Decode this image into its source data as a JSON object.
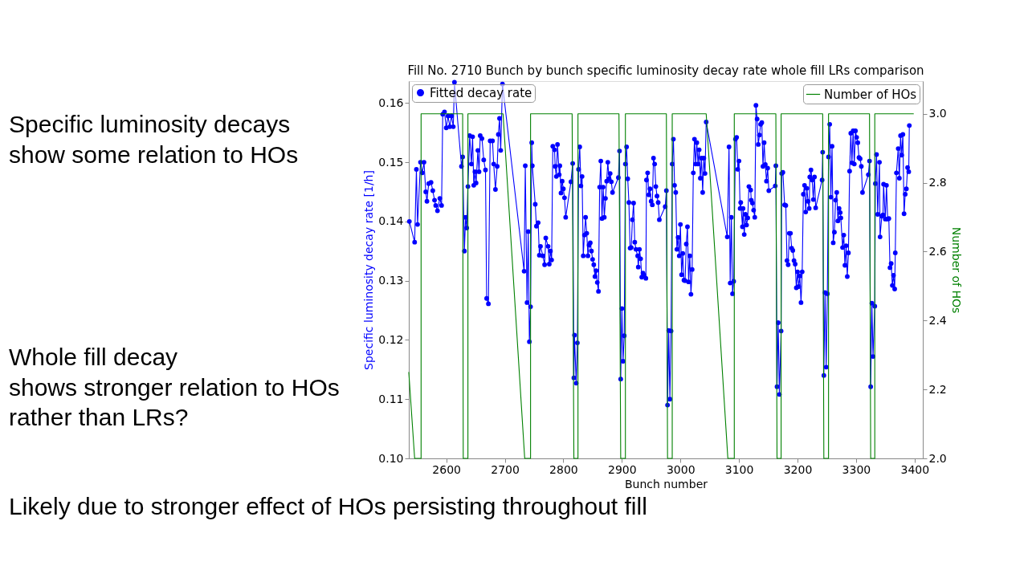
{
  "chart_data": {
    "type": "line",
    "legend": "top",
    "title": "Fill No. 2710 Bunch by bunch specific luminosity decay rate whole fill LRs comparison",
    "xlabel": "Bunch number",
    "ylabel": "Specific luminosity decay rate [1/h]",
    "y2label": "Number of HOs",
    "annotations": [
      "Specific luminosity decays\nshow some relation to HOs",
      "Whole fill decay\nshows stronger relation to HOs\nrather than LRs?",
      "Likely due to stronger effect of HOs persisting throughout fill"
    ],
    "xlim": [
      2536,
      3414
    ],
    "xticks": [
      2600,
      2700,
      2800,
      2900,
      3000,
      3100,
      3200,
      3300,
      3400
    ],
    "ylim": [
      0.1,
      0.1637
    ],
    "yticks": [
      {
        "value": 0.1,
        "label": "0.10"
      },
      {
        "value": 0.11,
        "label": "0.11"
      },
      {
        "value": 0.12,
        "label": "0.12"
      },
      {
        "value": 0.13,
        "label": "0.13"
      },
      {
        "value": 0.14,
        "label": "0.14"
      },
      {
        "value": 0.15,
        "label": "0.15"
      },
      {
        "value": 0.16,
        "label": "0.16"
      }
    ],
    "y2lim": [
      2.0,
      3.095
    ],
    "y2ticks": [
      {
        "value": 2.0,
        "label": "2.0"
      },
      {
        "value": 2.2,
        "label": "2.2"
      },
      {
        "value": 2.4,
        "label": "2.4"
      },
      {
        "value": 2.6,
        "label": "2.6"
      },
      {
        "value": 2.8,
        "label": "2.8"
      },
      {
        "value": 3.0,
        "label": "3.0"
      }
    ],
    "series": [
      {
        "name": "Fitted decay rate",
        "color": "#0000ff",
        "axis": "y",
        "marker": "circle",
        "x": [
          2537,
          2546,
          2549,
          2551,
          2556,
          2559,
          2562,
          2565,
          2567,
          2570,
          2574,
          2577,
          2580,
          2582,
          2585,
          2589,
          2592,
          2594,
          2597,
          2600,
          2603,
          2606,
          2609,
          2612,
          2614,
          2626,
          2628,
          2631,
          2633,
          2635,
          2637,
          2640,
          2643,
          2645,
          2647,
          2649,
          2651,
          2654,
          2656,
          2658,
          2661,
          2664,
          2667,
          2669,
          2672,
          2675,
          2679,
          2681,
          2684,
          2687,
          2689,
          2691,
          2693,
          2696,
          2733,
          2735,
          2738,
          2740,
          2742,
          2744,
          2746,
          2747,
          2752,
          2754,
          2757,
          2759,
          2761,
          2765,
          2768,
          2770,
          2774,
          2776,
          2778,
          2780,
          2782,
          2785,
          2786,
          2788,
          2790,
          2793,
          2794,
          2796,
          2798,
          2800,
          2802,
          2804,
          2813,
          2816,
          2818,
          2819,
          2822,
          2824,
          2826,
          2828,
          2830,
          2832,
          2834,
          2836,
          2838,
          2840,
          2842,
          2844,
          2846,
          2848,
          2850,
          2852,
          2854,
          2856,
          2858,
          2860,
          2862,
          2864,
          2866,
          2868,
          2870,
          2872,
          2874,
          2876,
          2878,
          2880,
          2882,
          2884,
          2894,
          2896,
          2898,
          2900,
          2902,
          2904,
          2906,
          2908,
          2910,
          2912,
          2914,
          2916,
          2918,
          2920,
          2922,
          2924,
          2927,
          2928,
          2930,
          2932,
          2934,
          2936,
          2938,
          2941,
          2942,
          2944,
          2946,
          2948,
          2950,
          2952,
          2954,
          2956,
          2958,
          2960,
          2962,
          2964,
          2974,
          2976,
          2978,
          2980,
          2982,
          2984,
          2986,
          2988,
          2990,
          2992,
          2994,
          2996,
          2998,
          3000,
          3002,
          3004,
          3006,
          3008,
          3010,
          3012,
          3014,
          3016,
          3018,
          3020,
          3022,
          3024,
          3026,
          3028,
          3030,
          3032,
          3034,
          3036,
          3038,
          3040,
          3042,
          3044,
          3080,
          3083,
          3085,
          3087,
          3089,
          3091,
          3094,
          3096,
          3098,
          3100,
          3102,
          3103,
          3106,
          3107,
          3109,
          3111,
          3113,
          3115,
          3117,
          3120,
          3121,
          3123,
          3125,
          3127,
          3129,
          3131,
          3133,
          3135,
          3137,
          3139,
          3141,
          3143,
          3145,
          3147,
          3149,
          3151,
          3162,
          3163,
          3165,
          3167,
          3169,
          3172,
          3173,
          3175,
          3178,
          3180,
          3182,
          3184,
          3186,
          3188,
          3190,
          3192,
          3194,
          3196,
          3198,
          3200,
          3202,
          3204,
          3206,
          3208,
          3210,
          3212,
          3214,
          3216,
          3218,
          3220,
          3221,
          3223,
          3225,
          3227,
          3229,
          3231,
          3242,
          3243,
          3245,
          3247,
          3249,
          3251,
          3253,
          3255,
          3257,
          3259,
          3261,
          3263,
          3265,
          3267,
          3269,
          3271,
          3273,
          3274,
          3277,
          3279,
          3281,
          3283,
          3285,
          3287,
          3289,
          3291,
          3293,
          3295,
          3297,
          3299,
          3301,
          3303,
          3305,
          3307,
          3309,
          3311,
          3321,
          3323,
          3325,
          3327,
          3329,
          3332,
          3333,
          3335,
          3337,
          3340,
          3341,
          3344,
          3346,
          3347,
          3350,
          3352,
          3354,
          3356,
          3358,
          3360,
          3362,
          3364,
          3366,
          3367,
          3369,
          3372,
          3374,
          3376,
          3378,
          3380,
          3382,
          3384,
          3386,
          3388,
          3390,
          3391
        ],
        "values": [
          0.14,
          0.1365,
          0.1488,
          0.1395,
          0.15,
          0.1482,
          0.15,
          0.145,
          0.1434,
          0.1464,
          0.1466,
          0.1452,
          0.1436,
          0.1427,
          0.1418,
          0.1439,
          0.1427,
          0.1581,
          0.1585,
          0.1558,
          0.1578,
          0.156,
          0.1578,
          0.156,
          0.1635,
          0.1493,
          0.1509,
          0.135,
          0.1407,
          0.1389,
          0.1459,
          0.1545,
          0.1497,
          0.1543,
          0.1461,
          0.1484,
          0.1465,
          0.152,
          0.1484,
          0.1545,
          0.154,
          0.1504,
          0.1487,
          0.127,
          0.1261,
          0.1536,
          0.1536,
          0.1497,
          0.1454,
          0.1493,
          0.1547,
          0.1574,
          0.152,
          0.1632,
          0.1316,
          0.1494,
          0.1263,
          0.1383,
          0.1197,
          0.1256,
          0.1533,
          0.1494,
          0.1429,
          0.1392,
          0.1398,
          0.1343,
          0.1358,
          0.1342,
          0.1327,
          0.1372,
          0.1358,
          0.1328,
          0.135,
          0.1335,
          0.1527,
          0.1521,
          0.1493,
          0.1476,
          0.153,
          0.1479,
          0.1494,
          0.1448,
          0.1468,
          0.1455,
          0.144,
          0.1407,
          0.1467,
          0.1498,
          0.1136,
          0.1208,
          0.1127,
          0.1195,
          0.1488,
          0.1526,
          0.146,
          0.1476,
          0.1342,
          0.1377,
          0.1407,
          0.138,
          0.1342,
          0.136,
          0.1364,
          0.135,
          0.1336,
          0.1327,
          0.1307,
          0.1317,
          0.1297,
          0.1282,
          0.1458,
          0.1502,
          0.1405,
          0.1458,
          0.1407,
          0.1439,
          0.1468,
          0.15,
          0.1472,
          0.1481,
          0.1467,
          0.1449,
          0.1474,
          0.1519,
          0.1134,
          0.1253,
          0.1164,
          0.1207,
          0.1497,
          0.1526,
          0.1472,
          0.1432,
          0.1355,
          0.1356,
          0.1403,
          0.1431,
          0.1365,
          0.1353,
          0.1342,
          0.1323,
          0.1353,
          0.1337,
          0.1306,
          0.1313,
          0.1309,
          0.1304,
          0.147,
          0.1482,
          0.1445,
          0.1455,
          0.1434,
          0.1428,
          0.1507,
          0.1497,
          0.1459,
          0.1443,
          0.1432,
          0.1403,
          0.1425,
          0.1452,
          0.109,
          0.1216,
          0.11,
          0.1215,
          0.1497,
          0.1539,
          0.1461,
          0.1449,
          0.1353,
          0.1373,
          0.1342,
          0.1395,
          0.131,
          0.1346,
          0.1301,
          0.13,
          0.1362,
          0.1391,
          0.1298,
          0.1342,
          0.1277,
          0.1319,
          0.1482,
          0.1539,
          0.1497,
          0.1533,
          0.1497,
          0.1521,
          0.1473,
          0.1507,
          0.1449,
          0.1507,
          0.1481,
          0.1568,
          0.1374,
          0.1526,
          0.1296,
          0.1407,
          0.1278,
          0.1299,
          0.1539,
          0.1542,
          0.1488,
          0.1502,
          0.1422,
          0.1432,
          0.1391,
          0.1422,
          0.1378,
          0.1412,
          0.1394,
          0.1406,
          0.1459,
          0.1453,
          0.1436,
          0.1431,
          0.1419,
          0.1407,
          0.1596,
          0.1573,
          0.153,
          0.1546,
          0.1564,
          0.1567,
          0.1493,
          0.1533,
          0.1496,
          0.1468,
          0.149,
          0.1452,
          0.146,
          0.1494,
          0.1121,
          0.1229,
          0.1108,
          0.1215,
          0.1481,
          0.1483,
          0.1428,
          0.1427,
          0.1334,
          0.1327,
          0.138,
          0.138,
          0.1355,
          0.1351,
          0.1334,
          0.1328,
          0.1288,
          0.1315,
          0.129,
          0.1308,
          0.1263,
          0.1315,
          0.1446,
          0.1461,
          0.1416,
          0.1456,
          0.1434,
          0.1422,
          0.1475,
          0.1487,
          0.147,
          0.1437,
          0.1475,
          0.1423,
          0.147,
          0.1517,
          0.114,
          0.128,
          0.1154,
          0.1278,
          0.1509,
          0.1564,
          0.1441,
          0.1527,
          0.1364,
          0.1382,
          0.1436,
          0.1449,
          0.1401,
          0.1422,
          0.1415,
          0.1406,
          0.1356,
          0.1377,
          0.1326,
          0.1359,
          0.1307,
          0.1347,
          0.1485,
          0.1549,
          0.1499,
          0.1553,
          0.1497,
          0.1553,
          0.1542,
          0.1533,
          0.1508,
          0.1506,
          0.1493,
          0.1449,
          0.1479,
          0.1502,
          0.1121,
          0.1262,
          0.1172,
          0.1257,
          0.1464,
          0.1513,
          0.1412,
          0.15,
          0.1374,
          0.1409,
          0.1411,
          0.1463,
          0.1404,
          0.1461,
          0.1404,
          0.1405,
          0.1322,
          0.1329,
          0.1292,
          0.1309,
          0.1286,
          0.1347,
          0.1482,
          0.1523,
          0.1473,
          0.1545,
          0.1512,
          0.1547,
          0.1413,
          0.1446,
          0.1455,
          0.1491,
          0.1484,
          0.1562
        ]
      },
      {
        "name": "Number of HOs",
        "color": "#008000",
        "axis": "y2",
        "marker": "none",
        "x": [
          2536,
          2546,
          2557,
          2557,
          2628,
          2629,
          2637,
          2637,
          2697,
          2734,
          2744,
          2744,
          2815,
          2818,
          2825,
          2825,
          2895,
          2898,
          2906,
          2906,
          2976,
          2978,
          2986,
          2986,
          3044,
          3081,
          3092,
          3092,
          3163,
          3165,
          3172,
          3172,
          3243,
          3245,
          3253,
          3253,
          3323,
          3325,
          3332,
          3332,
          3398
        ],
        "values": [
          2.25,
          2.0,
          2.0,
          3.0,
          3.0,
          2.0,
          2.0,
          3.0,
          3.0,
          2.0,
          2.0,
          3.0,
          3.0,
          2.0,
          2.0,
          3.0,
          3.0,
          2.0,
          2.0,
          3.0,
          3.0,
          2.0,
          2.0,
          3.0,
          3.0,
          2.0,
          2.0,
          3.0,
          3.0,
          2.0,
          2.0,
          3.0,
          3.0,
          2.0,
          2.0,
          3.0,
          3.0,
          2.0,
          2.0,
          3.0,
          3.0
        ]
      }
    ]
  }
}
